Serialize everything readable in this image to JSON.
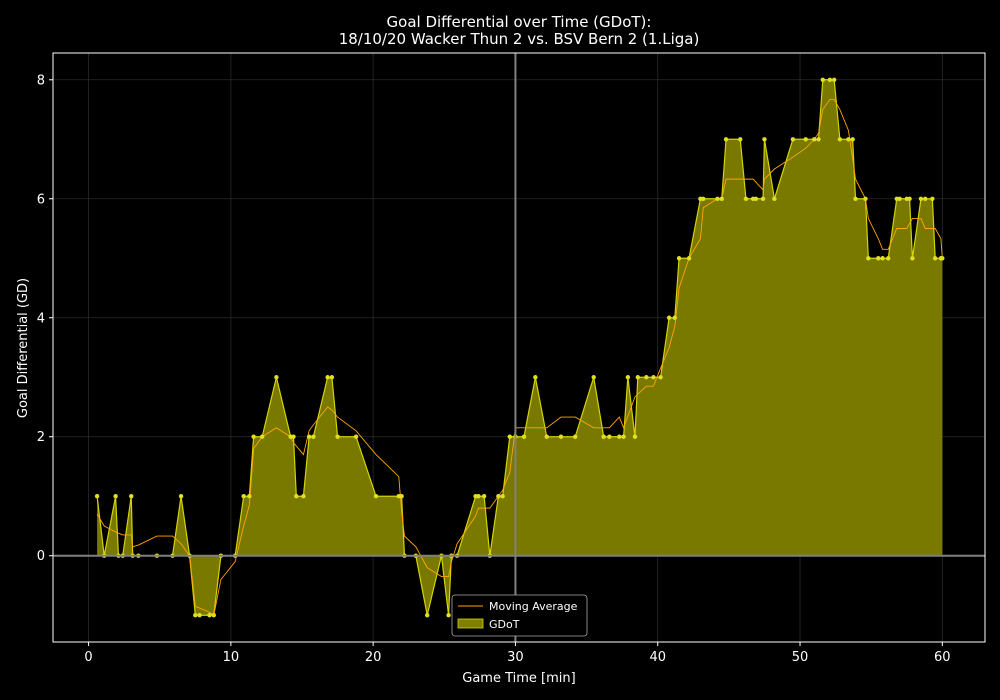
{
  "chart_data": {
    "type": "area",
    "title_line1": "Goal Differential over Time (GDoT):",
    "title_line2": "18/10/20 Wacker Thun 2  vs.  BSV Bern 2 (1.Liga)",
    "xlabel": "Game Time [min]",
    "ylabel": "Goal Differential (GD)",
    "xlim": [
      -2.5,
      63
    ],
    "ylim": [
      -1.45,
      8.45
    ],
    "xticks": [
      0,
      10,
      20,
      30,
      40,
      50,
      60
    ],
    "yticks": [
      0,
      2,
      4,
      6,
      8
    ],
    "grid": true,
    "legend_position": "bottom-center",
    "vertical_marker_x": 30,
    "colors": {
      "background": "#000000",
      "fill": "#808000",
      "gdot_line": "#d4d400",
      "gdot_marker": "#e0e020",
      "moving_average": "#ffa500",
      "axis": "#ffffff",
      "grid": "#2a2a2a",
      "marker_line": "#808080",
      "zero_line": "#808080"
    },
    "series": [
      {
        "name": "GDoT",
        "kind": "area",
        "points": [
          [
            0.6,
            1
          ],
          [
            1.1,
            0
          ],
          [
            1.9,
            1
          ],
          [
            2.1,
            0
          ],
          [
            2.4,
            0
          ],
          [
            3.0,
            1
          ],
          [
            3.1,
            0
          ],
          [
            3.5,
            0
          ],
          [
            4.8,
            0
          ],
          [
            5.9,
            0
          ],
          [
            6.5,
            1
          ],
          [
            7.1,
            0
          ],
          [
            7.5,
            -1
          ],
          [
            7.8,
            -1
          ],
          [
            8.5,
            -1
          ],
          [
            8.8,
            -1
          ],
          [
            9.3,
            0
          ],
          [
            10.3,
            0
          ],
          [
            10.9,
            1
          ],
          [
            11.3,
            1
          ],
          [
            11.6,
            2
          ],
          [
            12.2,
            2
          ],
          [
            13.2,
            3
          ],
          [
            14.2,
            2
          ],
          [
            14.4,
            2
          ],
          [
            14.6,
            1
          ],
          [
            15.1,
            1
          ],
          [
            15.5,
            2
          ],
          [
            15.8,
            2
          ],
          [
            16.8,
            3
          ],
          [
            17.1,
            3
          ],
          [
            17.5,
            2
          ],
          [
            18.8,
            2
          ],
          [
            20.2,
            1
          ],
          [
            21.8,
            1
          ],
          [
            22.0,
            1
          ],
          [
            22.2,
            0
          ],
          [
            23.0,
            0
          ],
          [
            23.8,
            -1
          ],
          [
            24.8,
            0
          ],
          [
            25.3,
            -1
          ],
          [
            25.5,
            0
          ],
          [
            25.9,
            0
          ],
          [
            27.2,
            1
          ],
          [
            27.4,
            1
          ],
          [
            27.8,
            1
          ],
          [
            28.2,
            0
          ],
          [
            28.8,
            1
          ],
          [
            29.1,
            1
          ],
          [
            29.6,
            2
          ],
          [
            30.0,
            2
          ],
          [
            30.6,
            2
          ],
          [
            31.4,
            3
          ],
          [
            32.2,
            2
          ],
          [
            33.2,
            2
          ],
          [
            34.2,
            2
          ],
          [
            35.5,
            3
          ],
          [
            36.2,
            2
          ],
          [
            36.6,
            2
          ],
          [
            37.3,
            2
          ],
          [
            37.6,
            2
          ],
          [
            37.9,
            3
          ],
          [
            38.4,
            2
          ],
          [
            38.6,
            3
          ],
          [
            39.2,
            3
          ],
          [
            39.7,
            3
          ],
          [
            40.2,
            3
          ],
          [
            40.8,
            4
          ],
          [
            41.2,
            4
          ],
          [
            41.5,
            5
          ],
          [
            42.2,
            5
          ],
          [
            43.0,
            6
          ],
          [
            43.2,
            6
          ],
          [
            44.2,
            6
          ],
          [
            44.5,
            6
          ],
          [
            44.8,
            7
          ],
          [
            45.8,
            7
          ],
          [
            46.2,
            6
          ],
          [
            46.7,
            6
          ],
          [
            46.9,
            6
          ],
          [
            47.4,
            6
          ],
          [
            47.5,
            7
          ],
          [
            48.2,
            6
          ],
          [
            49.5,
            7
          ],
          [
            50.4,
            7
          ],
          [
            51.0,
            7
          ],
          [
            51.3,
            7
          ],
          [
            51.6,
            8
          ],
          [
            52.1,
            8
          ],
          [
            52.4,
            8
          ],
          [
            52.8,
            7
          ],
          [
            53.4,
            7
          ],
          [
            53.7,
            7
          ],
          [
            53.9,
            6
          ],
          [
            54.6,
            6
          ],
          [
            54.8,
            5
          ],
          [
            55.5,
            5
          ],
          [
            55.8,
            5
          ],
          [
            56.2,
            5
          ],
          [
            56.8,
            6
          ],
          [
            57.0,
            6
          ],
          [
            57.5,
            6
          ],
          [
            57.7,
            6
          ],
          [
            57.9,
            5
          ],
          [
            58.5,
            6
          ],
          [
            58.8,
            6
          ],
          [
            59.3,
            6
          ],
          [
            59.5,
            5
          ],
          [
            59.9,
            5
          ],
          [
            60.0,
            5
          ]
        ]
      },
      {
        "name": "Moving Average",
        "kind": "line",
        "points": [
          [
            0.6,
            0.7
          ],
          [
            1.1,
            0.5
          ],
          [
            1.9,
            0.4
          ],
          [
            2.4,
            0.35
          ],
          [
            3.0,
            0.35
          ],
          [
            3.1,
            0.15
          ],
          [
            3.5,
            0.18
          ],
          [
            4.8,
            0.33
          ],
          [
            5.9,
            0.33
          ],
          [
            6.5,
            0.2
          ],
          [
            7.1,
            0.0
          ],
          [
            7.5,
            -0.85
          ],
          [
            8.5,
            -0.95
          ],
          [
            8.8,
            -1.0
          ],
          [
            9.3,
            -0.4
          ],
          [
            10.3,
            -0.1
          ],
          [
            10.9,
            0.5
          ],
          [
            11.3,
            0.85
          ],
          [
            11.6,
            1.8
          ],
          [
            12.2,
            2.0
          ],
          [
            13.2,
            2.15
          ],
          [
            14.2,
            2.0
          ],
          [
            14.4,
            1.9
          ],
          [
            15.1,
            1.7
          ],
          [
            15.5,
            2.1
          ],
          [
            15.8,
            2.2
          ],
          [
            16.8,
            2.5
          ],
          [
            17.1,
            2.45
          ],
          [
            17.5,
            2.33
          ],
          [
            18.8,
            2.1
          ],
          [
            20.2,
            1.7
          ],
          [
            21.8,
            1.33
          ],
          [
            22.0,
            0.75
          ],
          [
            22.2,
            0.33
          ],
          [
            23.0,
            0.15
          ],
          [
            23.8,
            -0.2
          ],
          [
            24.8,
            -0.35
          ],
          [
            25.3,
            -0.35
          ],
          [
            25.5,
            -0.1
          ],
          [
            25.9,
            0.2
          ],
          [
            27.2,
            0.67
          ],
          [
            27.4,
            0.8
          ],
          [
            28.2,
            0.8
          ],
          [
            28.8,
            1.0
          ],
          [
            29.1,
            1.1
          ],
          [
            29.6,
            1.4
          ],
          [
            30.0,
            2.15
          ],
          [
            30.6,
            2.15
          ],
          [
            31.4,
            2.15
          ],
          [
            32.2,
            2.15
          ],
          [
            33.2,
            2.33
          ],
          [
            34.2,
            2.33
          ],
          [
            35.5,
            2.15
          ],
          [
            36.2,
            2.15
          ],
          [
            36.6,
            2.15
          ],
          [
            37.3,
            2.33
          ],
          [
            37.6,
            2.15
          ],
          [
            38.4,
            2.67
          ],
          [
            39.2,
            2.85
          ],
          [
            39.7,
            2.85
          ],
          [
            40.2,
            3.15
          ],
          [
            40.8,
            3.5
          ],
          [
            41.2,
            3.85
          ],
          [
            41.5,
            4.5
          ],
          [
            42.2,
            5.0
          ],
          [
            43.0,
            5.33
          ],
          [
            43.2,
            5.85
          ],
          [
            44.2,
            6.0
          ],
          [
            44.5,
            6.0
          ],
          [
            44.8,
            6.33
          ],
          [
            45.8,
            6.33
          ],
          [
            46.7,
            6.33
          ],
          [
            47.4,
            6.15
          ],
          [
            47.5,
            6.33
          ],
          [
            48.2,
            6.5
          ],
          [
            49.5,
            6.7
          ],
          [
            50.4,
            6.85
          ],
          [
            51.0,
            7.0
          ],
          [
            51.3,
            7.1
          ],
          [
            51.6,
            7.5
          ],
          [
            52.1,
            7.67
          ],
          [
            52.4,
            7.67
          ],
          [
            52.8,
            7.5
          ],
          [
            53.4,
            7.15
          ],
          [
            53.7,
            6.67
          ],
          [
            53.9,
            6.33
          ],
          [
            54.6,
            6.0
          ],
          [
            54.8,
            5.67
          ],
          [
            55.5,
            5.33
          ],
          [
            55.8,
            5.15
          ],
          [
            56.2,
            5.15
          ],
          [
            56.8,
            5.5
          ],
          [
            57.5,
            5.5
          ],
          [
            57.9,
            5.67
          ],
          [
            58.5,
            5.67
          ],
          [
            58.8,
            5.5
          ],
          [
            59.3,
            5.5
          ],
          [
            59.5,
            5.5
          ],
          [
            59.9,
            5.33
          ],
          [
            60.0,
            5.0
          ]
        ]
      }
    ]
  }
}
